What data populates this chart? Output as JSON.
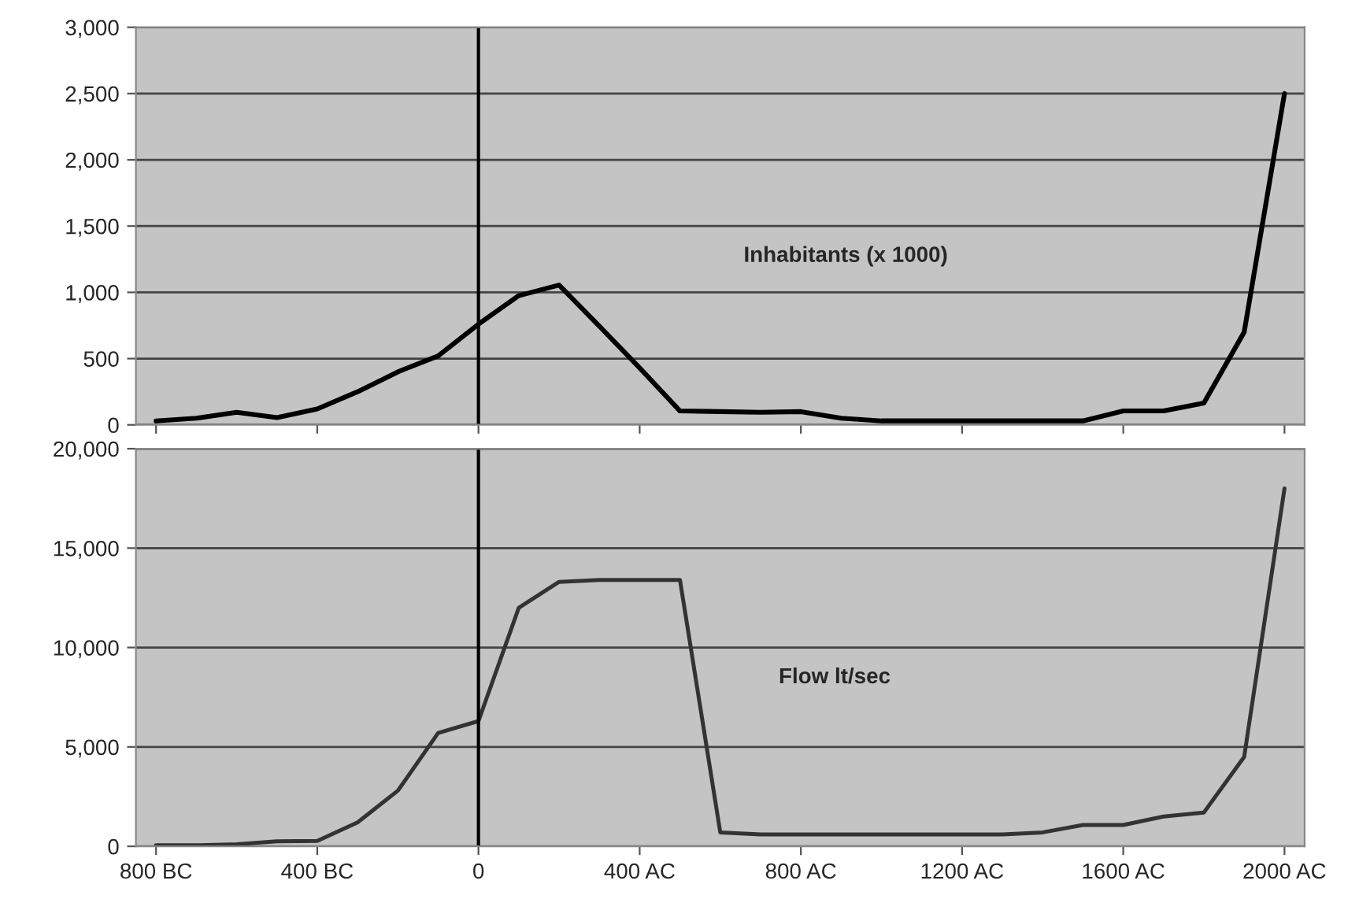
{
  "chart_data": [
    {
      "type": "line",
      "x": [
        -800,
        -700,
        -600,
        -500,
        -400,
        -300,
        -200,
        -100,
        0,
        100,
        200,
        300,
        400,
        500,
        600,
        700,
        800,
        900,
        1000,
        1100,
        1200,
        1300,
        1400,
        1500,
        1600,
        1700,
        1800,
        1900,
        2000
      ],
      "series": [
        {
          "color": "#000000",
          "values": [
            30,
            50,
            95,
            55,
            120,
            250,
            400,
            520,
            760,
            975,
            1055,
            745,
            430,
            105,
            100,
            95,
            100,
            50,
            30,
            30,
            30,
            30,
            30,
            30,
            105,
            105,
            165,
            700,
            2500
          ]
        }
      ],
      "xlim": [
        -850,
        2050
      ],
      "xticks": [
        {
          "value": -800,
          "label": null
        },
        {
          "value": -400,
          "label": null
        },
        {
          "value": 0,
          "label": null
        },
        {
          "value": 400,
          "label": null
        },
        {
          "value": 800,
          "label": null
        },
        {
          "value": 1200,
          "label": null
        },
        {
          "value": 1600,
          "label": null
        },
        {
          "value": 2000,
          "label": null
        }
      ],
      "ylim": [
        0,
        3000
      ],
      "yticks": [
        {
          "value": 0,
          "label": "0"
        },
        {
          "value": 500,
          "label": "500"
        },
        {
          "value": 1000,
          "label": "1,000"
        },
        {
          "value": 1500,
          "label": "1,500"
        },
        {
          "value": 2000,
          "label": "2,000"
        },
        {
          "value": 2500,
          "label": "2,500"
        },
        {
          "value": 3000,
          "label": "3,000"
        }
      ],
      "tick_labels": "y",
      "grid": "y",
      "legend": false,
      "ref_lines": [
        {
          "axis": "x",
          "value": 0,
          "color": "#000000"
        }
      ],
      "annotations": [
        "Inhabitants (x 1000)"
      ]
    },
    {
      "type": "line",
      "x": [
        -800,
        -700,
        -600,
        -500,
        -400,
        -300,
        -200,
        -100,
        0,
        100,
        200,
        300,
        400,
        500,
        600,
        700,
        800,
        900,
        1000,
        1100,
        1200,
        1300,
        1400,
        1500,
        1600,
        1700,
        1800,
        1900,
        2000
      ],
      "series": [
        {
          "color": "#333333",
          "values": [
            50,
            50,
            100,
            250,
            270,
            1200,
            2800,
            5700,
            6300,
            12000,
            13300,
            13400,
            13400,
            13400,
            700,
            600,
            600,
            600,
            600,
            600,
            600,
            600,
            700,
            1070,
            1070,
            1500,
            1700,
            4500,
            18000
          ]
        }
      ],
      "xlim": [
        -850,
        2050
      ],
      "xticks": [
        {
          "value": -800,
          "label": "800 BC"
        },
        {
          "value": -400,
          "label": "400 BC"
        },
        {
          "value": 0,
          "label": "0"
        },
        {
          "value": 400,
          "label": "400 AC"
        },
        {
          "value": 800,
          "label": "800 AC"
        },
        {
          "value": 1200,
          "label": "1200 AC"
        },
        {
          "value": 1600,
          "label": "1600 AC"
        },
        {
          "value": 2000,
          "label": "2000 AC"
        }
      ],
      "ylim": [
        0,
        20000
      ],
      "yticks": [
        {
          "value": 0,
          "label": "0"
        },
        {
          "value": 5000,
          "label": "5,000"
        },
        {
          "value": 10000,
          "label": "10,000"
        },
        {
          "value": 15000,
          "label": "15,000"
        },
        {
          "value": 20000,
          "label": "20,000"
        }
      ],
      "grid": "y",
      "legend": false,
      "ref_lines": [
        {
          "axis": "x",
          "value": 0,
          "color": "#000000"
        }
      ],
      "annotations": [
        "Flow lt/sec"
      ]
    }
  ]
}
